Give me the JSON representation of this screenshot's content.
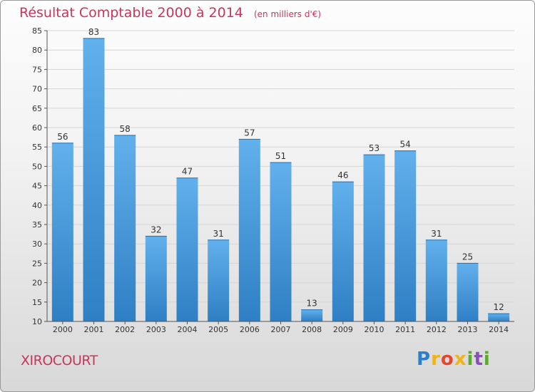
{
  "chart_data": {
    "type": "bar",
    "title": "Résultat Comptable 2000 à 2014",
    "subtitle": "(en milliers d'€)",
    "categories": [
      "2000",
      "2001",
      "2002",
      "2003",
      "2004",
      "2005",
      "2006",
      "2007",
      "2008",
      "2009",
      "2010",
      "2011",
      "2012",
      "2013",
      "2014"
    ],
    "values": [
      56,
      83,
      58,
      32,
      47,
      31,
      57,
      51,
      13,
      46,
      53,
      54,
      31,
      25,
      12
    ],
    "ylim": [
      10,
      85
    ],
    "yticks": [
      10,
      15,
      20,
      25,
      30,
      35,
      40,
      45,
      50,
      55,
      60,
      65,
      70,
      75,
      80,
      85
    ],
    "xlabel": "",
    "ylabel": "",
    "grid": true,
    "bar_color": "#3a8fd6"
  },
  "commune": "XIROCOURT",
  "logo": {
    "letters": [
      "P",
      "r",
      "o",
      "x",
      "i",
      "t",
      "i"
    ],
    "colors": [
      "#2e7fc9",
      "#f0b419",
      "#e8452c",
      "#f0b419",
      "#5aab2e",
      "#8a4fb5",
      "#5aab2e"
    ]
  }
}
